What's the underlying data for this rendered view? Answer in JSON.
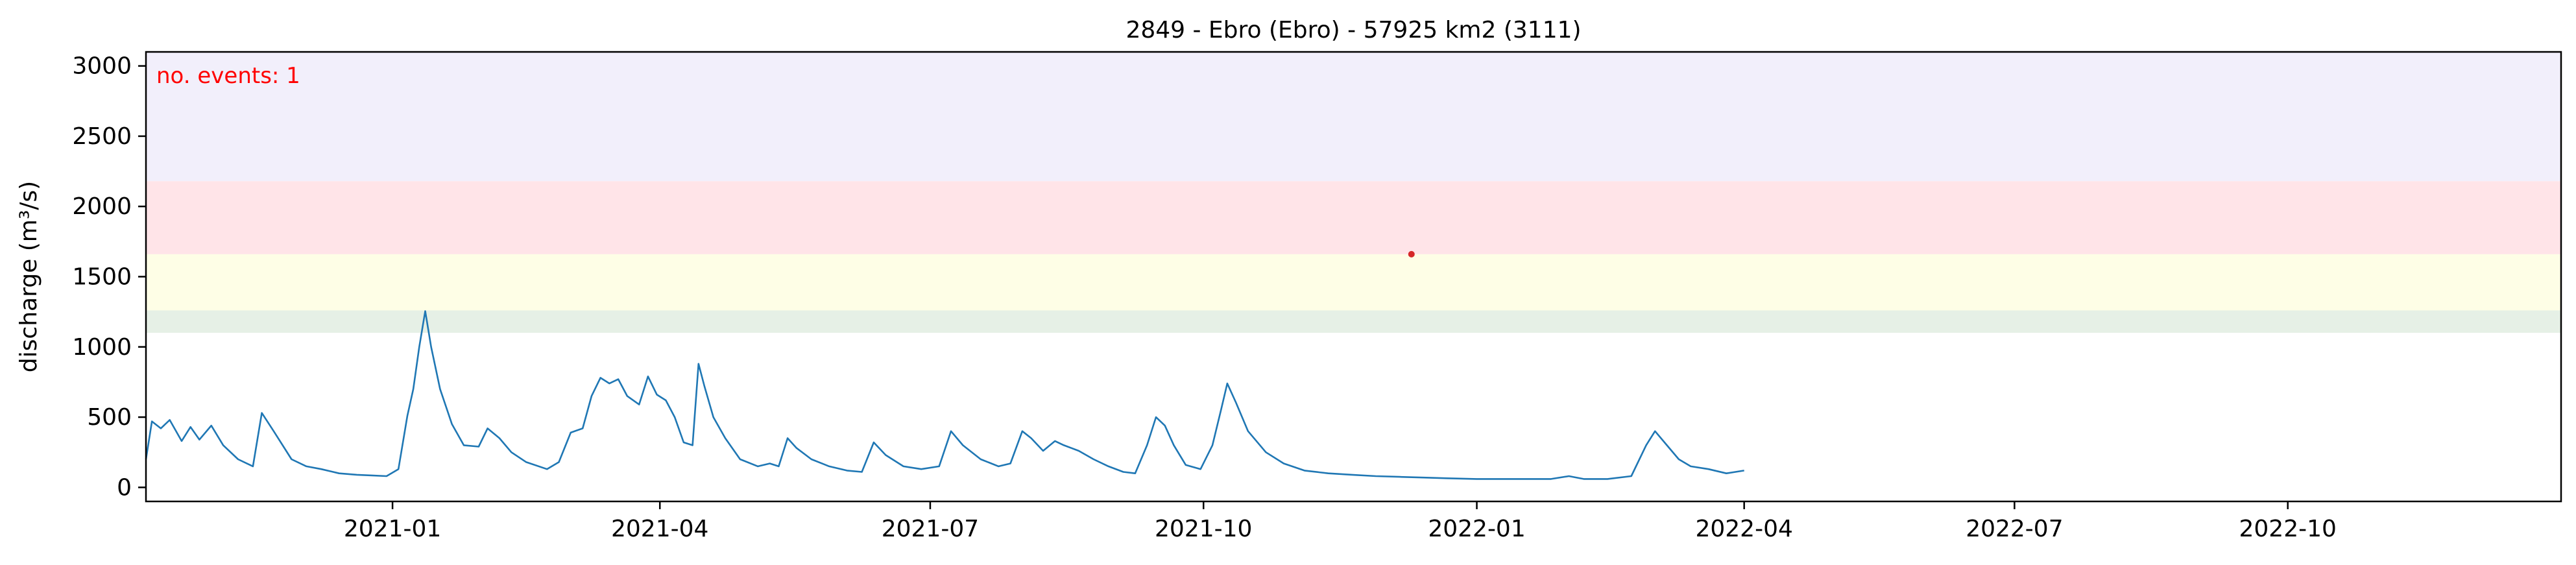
{
  "chart_data": {
    "type": "line",
    "title": "2849 - Ebro (Ebro) - 57925 km2 (3111)",
    "ylabel": "discharge (m³/s)",
    "xlim": [
      "2020-10-10",
      "2022-12-31"
    ],
    "ylim": [
      -100,
      3100
    ],
    "yticks": [
      0,
      500,
      1000,
      1500,
      2000,
      2500,
      3000
    ],
    "xticks": [
      "2021-01",
      "2021-04",
      "2021-07",
      "2021-10",
      "2022-01",
      "2022-04",
      "2022-07",
      "2022-10"
    ],
    "xtick_dates": [
      "2021-01-01",
      "2021-04-01",
      "2021-07-01",
      "2021-10-01",
      "2022-01-01",
      "2022-04-01",
      "2022-07-01",
      "2022-10-01"
    ],
    "grid": false,
    "annotation": {
      "text": "no. events: 1",
      "color": "#ff0000"
    },
    "threshold_bands": [
      {
        "from": 1100,
        "to": 1260,
        "color": "#e6f0e6"
      },
      {
        "from": 1260,
        "to": 1660,
        "color": "#fefee6"
      },
      {
        "from": 1660,
        "to": 2180,
        "color": "#ffe4e8"
      },
      {
        "from": 2180,
        "to": 3100,
        "color": "#f2effb"
      }
    ],
    "event_points": [
      {
        "x": "2021-12-10",
        "y": 1660,
        "color": "#d62728"
      }
    ],
    "series": [
      {
        "color": "#1f77b4",
        "points": [
          [
            "2020-10-10",
            200
          ],
          [
            "2020-10-12",
            470
          ],
          [
            "2020-10-15",
            420
          ],
          [
            "2020-10-18",
            480
          ],
          [
            "2020-10-22",
            330
          ],
          [
            "2020-10-25",
            430
          ],
          [
            "2020-10-28",
            340
          ],
          [
            "2020-11-01",
            440
          ],
          [
            "2020-11-05",
            300
          ],
          [
            "2020-11-10",
            200
          ],
          [
            "2020-11-15",
            150
          ],
          [
            "2020-11-18",
            530
          ],
          [
            "2020-11-22",
            400
          ],
          [
            "2020-11-28",
            200
          ],
          [
            "2020-12-03",
            150
          ],
          [
            "2020-12-08",
            130
          ],
          [
            "2020-12-14",
            100
          ],
          [
            "2020-12-20",
            90
          ],
          [
            "2020-12-25",
            85
          ],
          [
            "2020-12-30",
            80
          ],
          [
            "2021-01-03",
            130
          ],
          [
            "2021-01-06",
            510
          ],
          [
            "2021-01-08",
            700
          ],
          [
            "2021-01-10",
            1000
          ],
          [
            "2021-01-12",
            1255
          ],
          [
            "2021-01-14",
            1000
          ],
          [
            "2021-01-17",
            700
          ],
          [
            "2021-01-21",
            450
          ],
          [
            "2021-01-25",
            300
          ],
          [
            "2021-01-30",
            290
          ],
          [
            "2021-02-02",
            420
          ],
          [
            "2021-02-06",
            350
          ],
          [
            "2021-02-10",
            250
          ],
          [
            "2021-02-15",
            180
          ],
          [
            "2021-02-22",
            130
          ],
          [
            "2021-02-26",
            180
          ],
          [
            "2021-03-02",
            390
          ],
          [
            "2021-03-06",
            420
          ],
          [
            "2021-03-09",
            650
          ],
          [
            "2021-03-12",
            780
          ],
          [
            "2021-03-15",
            740
          ],
          [
            "2021-03-18",
            770
          ],
          [
            "2021-03-21",
            650
          ],
          [
            "2021-03-25",
            590
          ],
          [
            "2021-03-28",
            790
          ],
          [
            "2021-03-31",
            660
          ],
          [
            "2021-04-03",
            620
          ],
          [
            "2021-04-06",
            500
          ],
          [
            "2021-04-09",
            320
          ],
          [
            "2021-04-12",
            300
          ],
          [
            "2021-04-14",
            880
          ],
          [
            "2021-04-16",
            720
          ],
          [
            "2021-04-19",
            500
          ],
          [
            "2021-04-23",
            350
          ],
          [
            "2021-04-28",
            200
          ],
          [
            "2021-05-04",
            150
          ],
          [
            "2021-05-08",
            170
          ],
          [
            "2021-05-11",
            150
          ],
          [
            "2021-05-14",
            350
          ],
          [
            "2021-05-17",
            280
          ],
          [
            "2021-05-22",
            200
          ],
          [
            "2021-05-28",
            150
          ],
          [
            "2021-06-03",
            120
          ],
          [
            "2021-06-08",
            110
          ],
          [
            "2021-06-12",
            320
          ],
          [
            "2021-06-16",
            230
          ],
          [
            "2021-06-22",
            150
          ],
          [
            "2021-06-28",
            130
          ],
          [
            "2021-07-04",
            150
          ],
          [
            "2021-07-08",
            400
          ],
          [
            "2021-07-12",
            300
          ],
          [
            "2021-07-18",
            200
          ],
          [
            "2021-07-24",
            150
          ],
          [
            "2021-07-28",
            170
          ],
          [
            "2021-08-01",
            400
          ],
          [
            "2021-08-04",
            350
          ],
          [
            "2021-08-08",
            260
          ],
          [
            "2021-08-12",
            330
          ],
          [
            "2021-08-15",
            300
          ],
          [
            "2021-08-20",
            260
          ],
          [
            "2021-08-25",
            200
          ],
          [
            "2021-08-30",
            150
          ],
          [
            "2021-09-04",
            110
          ],
          [
            "2021-09-08",
            100
          ],
          [
            "2021-09-12",
            300
          ],
          [
            "2021-09-15",
            500
          ],
          [
            "2021-09-18",
            440
          ],
          [
            "2021-09-21",
            300
          ],
          [
            "2021-09-25",
            160
          ],
          [
            "2021-09-30",
            130
          ],
          [
            "2021-10-04",
            300
          ],
          [
            "2021-10-07",
            560
          ],
          [
            "2021-10-09",
            740
          ],
          [
            "2021-10-12",
            600
          ],
          [
            "2021-10-16",
            400
          ],
          [
            "2021-10-22",
            250
          ],
          [
            "2021-10-28",
            170
          ],
          [
            "2021-11-04",
            120
          ],
          [
            "2021-11-12",
            100
          ],
          [
            "2021-11-20",
            90
          ],
          [
            "2021-11-28",
            80
          ],
          [
            "2021-12-06",
            75
          ],
          [
            "2021-12-14",
            70
          ],
          [
            "2021-12-22",
            65
          ],
          [
            "2022-01-01",
            60
          ],
          [
            "2022-01-10",
            60
          ],
          [
            "2022-01-18",
            60
          ],
          [
            "2022-01-26",
            60
          ],
          [
            "2022-02-01",
            80
          ],
          [
            "2022-02-06",
            60
          ],
          [
            "2022-02-14",
            60
          ],
          [
            "2022-02-22",
            80
          ],
          [
            "2022-02-27",
            300
          ],
          [
            "2022-03-02",
            400
          ],
          [
            "2022-03-06",
            300
          ],
          [
            "2022-03-10",
            200
          ],
          [
            "2022-03-14",
            150
          ],
          [
            "2022-03-20",
            130
          ],
          [
            "2022-03-26",
            100
          ],
          [
            "2022-04-01",
            120
          ]
        ]
      }
    ]
  }
}
